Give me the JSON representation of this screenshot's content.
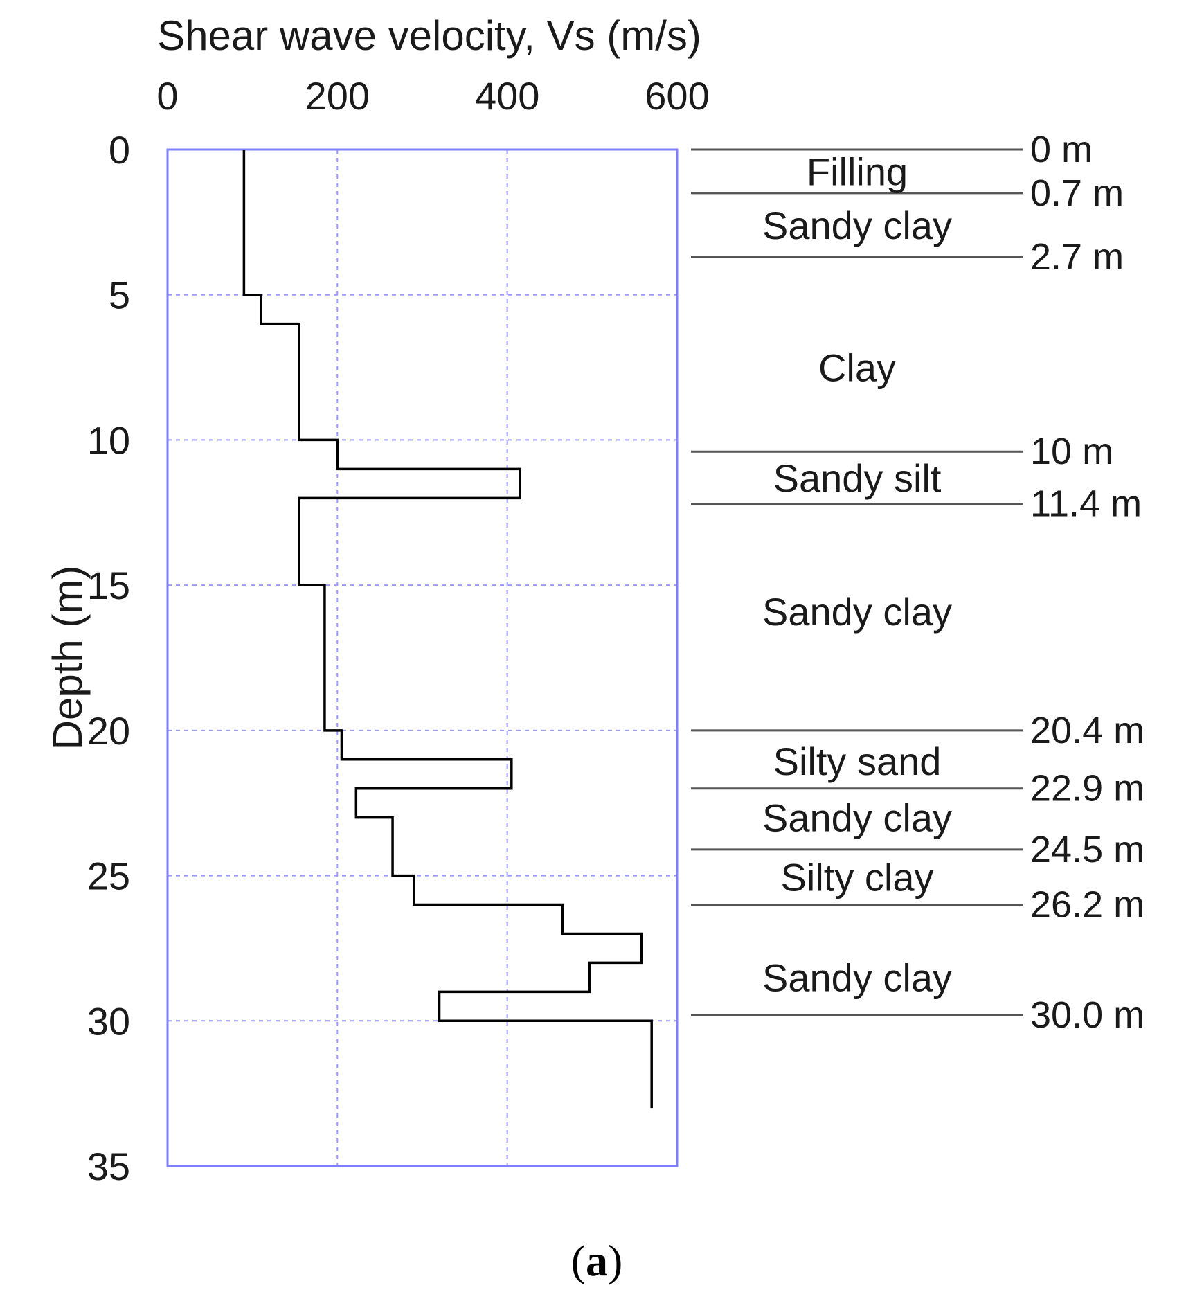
{
  "chart_data": {
    "type": "line",
    "title": "",
    "xlabel": "Shear wave velocity, Vs (m/s)",
    "ylabel": "Depth (m)",
    "xlim": [
      0,
      600
    ],
    "ylim": [
      0,
      35
    ],
    "x_ticks": [
      "0",
      "200",
      "400",
      "600"
    ],
    "y_ticks": [
      "0",
      "5",
      "10",
      "15",
      "20",
      "25",
      "30",
      "35"
    ],
    "x_tick_values": [
      0,
      200,
      400,
      600
    ],
    "y_tick_values": [
      0,
      5,
      10,
      15,
      20,
      25,
      30,
      35
    ],
    "grid": true,
    "caption_open": "(",
    "caption_letter": "a",
    "caption_close": ")",
    "series": [
      {
        "name": "Vs profile",
        "points": [
          {
            "vs": 90,
            "depth": 0
          },
          {
            "vs": 90,
            "depth": 5
          },
          {
            "vs": 110,
            "depth": 5
          },
          {
            "vs": 110,
            "depth": 6
          },
          {
            "vs": 155,
            "depth": 6
          },
          {
            "vs": 155,
            "depth": 10
          },
          {
            "vs": 200,
            "depth": 10
          },
          {
            "vs": 200,
            "depth": 11
          },
          {
            "vs": 415,
            "depth": 11
          },
          {
            "vs": 415,
            "depth": 12
          },
          {
            "vs": 155,
            "depth": 12
          },
          {
            "vs": 155,
            "depth": 15
          },
          {
            "vs": 185,
            "depth": 15
          },
          {
            "vs": 185,
            "depth": 20
          },
          {
            "vs": 205,
            "depth": 20
          },
          {
            "vs": 205,
            "depth": 21
          },
          {
            "vs": 405,
            "depth": 21
          },
          {
            "vs": 405,
            "depth": 22
          },
          {
            "vs": 222,
            "depth": 22
          },
          {
            "vs": 222,
            "depth": 23
          },
          {
            "vs": 265,
            "depth": 23
          },
          {
            "vs": 265,
            "depth": 25
          },
          {
            "vs": 290,
            "depth": 25
          },
          {
            "vs": 290,
            "depth": 26
          },
          {
            "vs": 465,
            "depth": 26
          },
          {
            "vs": 465,
            "depth": 27
          },
          {
            "vs": 558,
            "depth": 27
          },
          {
            "vs": 558,
            "depth": 28
          },
          {
            "vs": 497,
            "depth": 28
          },
          {
            "vs": 497,
            "depth": 29
          },
          {
            "vs": 320,
            "depth": 29
          },
          {
            "vs": 320,
            "depth": 30
          },
          {
            "vs": 570,
            "depth": 30
          },
          {
            "vs": 570,
            "depth": 33
          }
        ]
      }
    ],
    "boundaries": [
      {
        "label": "0 m",
        "depth": 0
      },
      {
        "label": "0.7 m",
        "depth": 1.5
      },
      {
        "label": "2.7 m",
        "depth": 3.7
      },
      {
        "label": "10 m",
        "depth": 10.4
      },
      {
        "label": "11.4 m",
        "depth": 12.2
      },
      {
        "label": "20.4 m",
        "depth": 20
      },
      {
        "label": "22.9 m",
        "depth": 22
      },
      {
        "label": "24.5 m",
        "depth": 24.1
      },
      {
        "label": "26.2 m",
        "depth": 26
      },
      {
        "label": "30.0 m",
        "depth": 29.8
      }
    ],
    "layers": [
      {
        "name": "Filling",
        "depth": 0.75
      },
      {
        "name": "Sandy clay",
        "depth": 2.6
      },
      {
        "name": "Clay",
        "depth": 7.5
      },
      {
        "name": "Sandy silt",
        "depth": 11.3
      },
      {
        "name": "Sandy clay",
        "depth": 15.9
      },
      {
        "name": "Silty sand",
        "depth": 21.05
      },
      {
        "name": "Sandy clay",
        "depth": 23.0
      },
      {
        "name": "Silty clay",
        "depth": 25.05
      },
      {
        "name": "Sandy clay",
        "depth": 28.5
      }
    ]
  }
}
